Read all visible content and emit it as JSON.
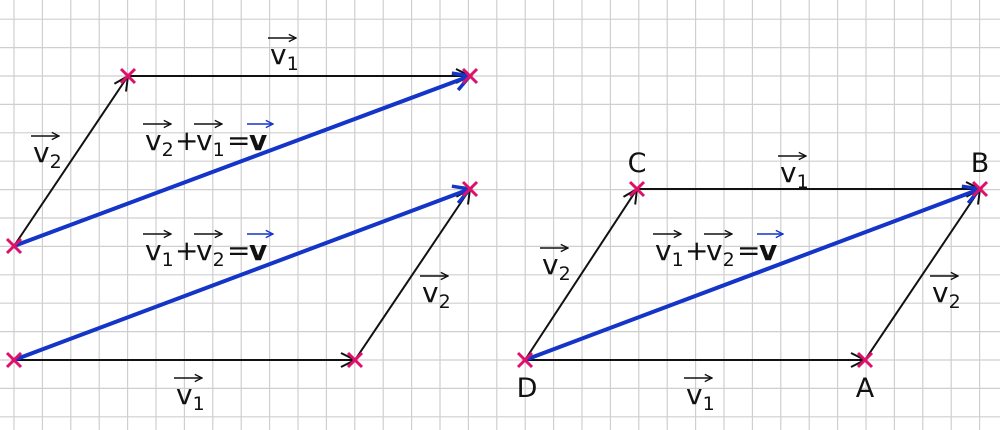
{
  "labels": [
    {
      "base": "v",
      "sub": "1"
    },
    {
      "base": "v",
      "sub": "2"
    },
    {
      "base": "v",
      "sub": "2"
    },
    {
      "base": "v",
      "sub": "1"
    },
    {
      "base": "v",
      "sub": "1"
    },
    {
      "base": "v",
      "sub": "2"
    },
    {
      "base": "v",
      "sub": "2"
    },
    {
      "base": "v",
      "sub": "1"
    }
  ],
  "equations": [
    {
      "a": {
        "base": "v",
        "sub": "2"
      },
      "op": "+",
      "b": {
        "base": "v",
        "sub": "1"
      },
      "eq": "=",
      "result": "v"
    },
    {
      "a": {
        "base": "v",
        "sub": "1"
      },
      "op": "+",
      "b": {
        "base": "v",
        "sub": "2"
      },
      "eq": "=",
      "result": "v"
    },
    {
      "a": {
        "base": "v",
        "sub": "1"
      },
      "op": "+",
      "b": {
        "base": "v",
        "sub": "2"
      },
      "eq": "=",
      "result": "v"
    }
  ],
  "points": [
    "C",
    "B",
    "D",
    "A"
  ]
}
